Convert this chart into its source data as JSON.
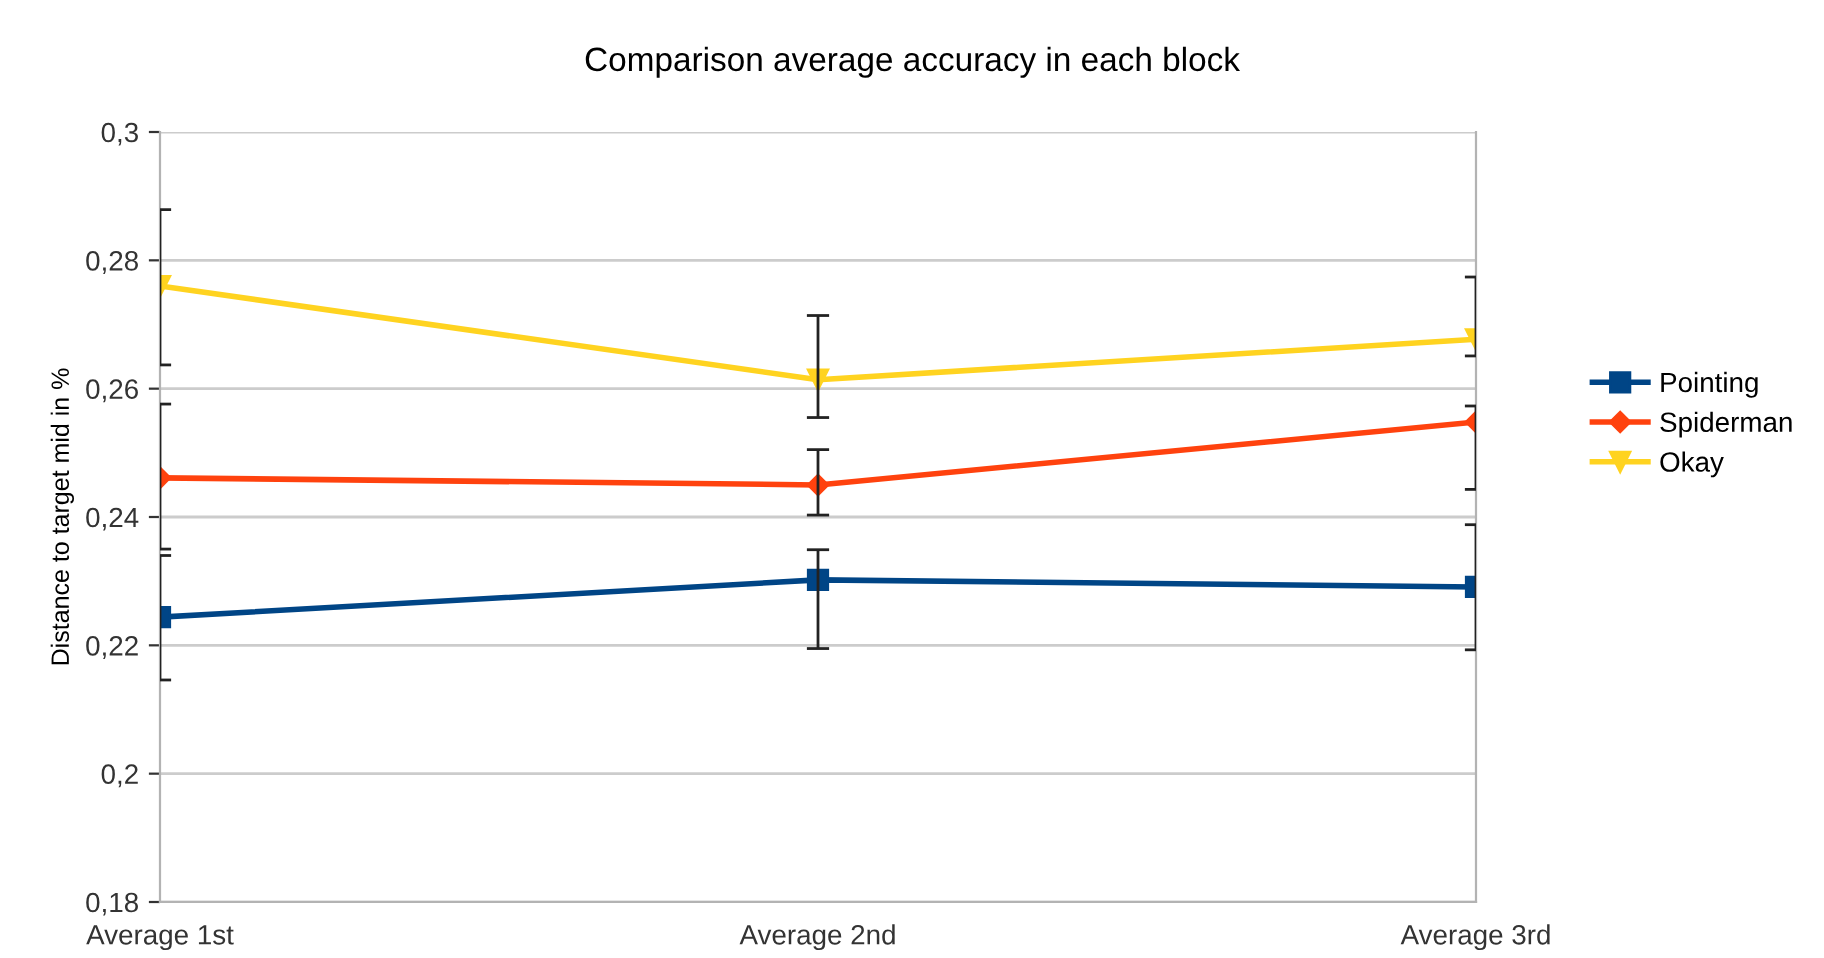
{
  "chart_data": {
    "type": "line",
    "title": "Comparison average accuracy in each block",
    "ylabel": "Distance to target mid in %",
    "categories": [
      "Average 1st",
      "Average 2nd",
      "Average 3rd"
    ],
    "series": [
      {
        "name": "Pointing",
        "color": "#004586",
        "marker": "square",
        "values": [
          0.2244,
          0.2302,
          0.2291
        ],
        "errors": [
          [
            0.2146,
            0.234
          ],
          [
            0.2195,
            0.2349
          ],
          [
            0.2193,
            0.2388
          ]
        ]
      },
      {
        "name": "Spiderman",
        "color": "#ff420e",
        "marker": "diamond",
        "values": [
          0.2461,
          0.245,
          0.2548
        ],
        "errors": [
          [
            0.235,
            0.2576
          ],
          [
            0.2403,
            0.2505
          ],
          [
            0.2443,
            0.2573
          ]
        ]
      },
      {
        "name": "Okay",
        "color": "#ffd320",
        "marker": "triangle",
        "values": [
          0.276,
          0.2614,
          0.2677
        ],
        "errors": [
          [
            0.2637,
            0.2879
          ],
          [
            0.2555,
            0.2714
          ],
          [
            0.2651,
            0.2774
          ]
        ]
      }
    ],
    "ylim": [
      0.18,
      0.3
    ],
    "yticks": [
      {
        "value": 0.18,
        "label": "0,18"
      },
      {
        "value": 0.2,
        "label": "0,2"
      },
      {
        "value": 0.22,
        "label": "0,22"
      },
      {
        "value": 0.24,
        "label": "0,24"
      },
      {
        "value": 0.26,
        "label": "0,26"
      },
      {
        "value": 0.28,
        "label": "0,28"
      },
      {
        "value": 0.3,
        "label": "0,3"
      }
    ],
    "grid": "y",
    "legend": "right",
    "line_style": "solid"
  }
}
